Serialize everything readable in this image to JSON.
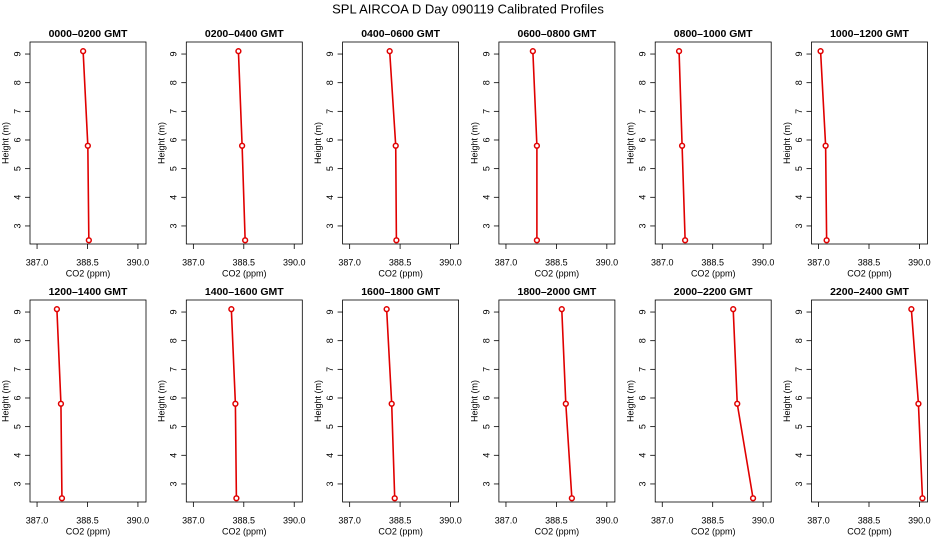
{
  "title": "SPL AIRCOA D  Day 090119  Calibrated Profiles",
  "chart_data": [
    {
      "type": "line",
      "title": "0000–0200 GMT",
      "x_label": "CO2 (ppm)",
      "y_label": "Height (m)",
      "color": "#e00000",
      "x": [
        388.37,
        388.51,
        388.54
      ],
      "values": [
        9.1,
        5.8,
        2.5
      ],
      "xlim": [
        386.79,
        390.24
      ],
      "ylim": [
        2.37,
        9.42
      ],
      "xticks": [
        {
          "value": 387,
          "label": "387.0"
        },
        {
          "value": 388.5,
          "label": "388.5"
        },
        {
          "value": 390,
          "label": "390.0"
        }
      ],
      "yticks": [
        3,
        4,
        5,
        6,
        7,
        8,
        9
      ]
    },
    {
      "type": "line",
      "title": "0200–0400 GMT",
      "x_label": "CO2 (ppm)",
      "y_label": "Height (m)",
      "color": "#e00000",
      "x": [
        388.34,
        388.45,
        388.54
      ],
      "values": [
        9.1,
        5.8,
        2.5
      ],
      "xlim": [
        386.79,
        390.24
      ],
      "ylim": [
        2.37,
        9.42
      ],
      "xticks": [
        {
          "value": 387,
          "label": "387.0"
        },
        {
          "value": 388.5,
          "label": "388.5"
        },
        {
          "value": 390,
          "label": "390.0"
        }
      ],
      "yticks": [
        3,
        4,
        5,
        6,
        7,
        8,
        9
      ]
    },
    {
      "type": "line",
      "title": "0400–0600 GMT",
      "x_label": "CO2 (ppm)",
      "y_label": "Height (m)",
      "color": "#e00000",
      "x": [
        388.19,
        388.37,
        388.39
      ],
      "values": [
        9.1,
        5.8,
        2.5
      ],
      "xlim": [
        386.79,
        390.24
      ],
      "ylim": [
        2.37,
        9.42
      ],
      "xticks": [
        {
          "value": 387,
          "label": "387.0"
        },
        {
          "value": 388.5,
          "label": "388.5"
        },
        {
          "value": 390,
          "label": "390.0"
        }
      ],
      "yticks": [
        3,
        4,
        5,
        6,
        7,
        8,
        9
      ]
    },
    {
      "type": "line",
      "title": "0600–0800 GMT",
      "x_label": "CO2 (ppm)",
      "y_label": "Height (m)",
      "color": "#e00000",
      "x": [
        387.8,
        387.92,
        387.92
      ],
      "values": [
        9.1,
        5.8,
        2.5
      ],
      "xlim": [
        386.79,
        390.24
      ],
      "ylim": [
        2.37,
        9.42
      ],
      "xticks": [
        {
          "value": 387,
          "label": "387.0"
        },
        {
          "value": 388.5,
          "label": "388.5"
        },
        {
          "value": 390,
          "label": "390.0"
        }
      ],
      "yticks": [
        3,
        4,
        5,
        6,
        7,
        8,
        9
      ]
    },
    {
      "type": "line",
      "title": "0800–1000 GMT",
      "x_label": "CO2 (ppm)",
      "y_label": "Height (m)",
      "color": "#e00000",
      "x": [
        387.5,
        387.59,
        387.68
      ],
      "values": [
        9.1,
        5.8,
        2.5
      ],
      "xlim": [
        386.79,
        390.24
      ],
      "ylim": [
        2.37,
        9.42
      ],
      "xticks": [
        {
          "value": 387,
          "label": "387.0"
        },
        {
          "value": 388.5,
          "label": "388.5"
        },
        {
          "value": 390,
          "label": "390.0"
        }
      ],
      "yticks": [
        3,
        4,
        5,
        6,
        7,
        8,
        9
      ]
    },
    {
      "type": "line",
      "title": "1000–1200 GMT",
      "x_label": "CO2 (ppm)",
      "y_label": "Height (m)",
      "color": "#e00000",
      "x": [
        387.06,
        387.21,
        387.24
      ],
      "values": [
        9.1,
        5.8,
        2.5
      ],
      "xlim": [
        386.79,
        390.24
      ],
      "ylim": [
        2.37,
        9.42
      ],
      "xticks": [
        {
          "value": 387,
          "label": "387.0"
        },
        {
          "value": 388.5,
          "label": "388.5"
        },
        {
          "value": 390,
          "label": "390.0"
        }
      ],
      "yticks": [
        3,
        4,
        5,
        6,
        7,
        8,
        9
      ]
    },
    {
      "type": "line",
      "title": "1200–1400 GMT",
      "x_label": "CO2 (ppm)",
      "y_label": "Height (m)",
      "color": "#e00000",
      "x": [
        387.59,
        387.71,
        387.74
      ],
      "values": [
        9.1,
        5.8,
        2.5
      ],
      "xlim": [
        386.79,
        390.24
      ],
      "ylim": [
        2.37,
        9.42
      ],
      "xticks": [
        {
          "value": 387,
          "label": "387.0"
        },
        {
          "value": 388.5,
          "label": "388.5"
        },
        {
          "value": 390,
          "label": "390.0"
        }
      ],
      "yticks": [
        3,
        4,
        5,
        6,
        7,
        8,
        9
      ]
    },
    {
      "type": "line",
      "title": "1400–1600 GMT",
      "x_label": "CO2 (ppm)",
      "y_label": "Height (m)",
      "color": "#e00000",
      "x": [
        388.13,
        388.25,
        388.28
      ],
      "values": [
        9.1,
        5.8,
        2.5
      ],
      "xlim": [
        386.79,
        390.24
      ],
      "ylim": [
        2.37,
        9.42
      ],
      "xticks": [
        {
          "value": 387,
          "label": "387.0"
        },
        {
          "value": 388.5,
          "label": "388.5"
        },
        {
          "value": 390,
          "label": "390.0"
        }
      ],
      "yticks": [
        3,
        4,
        5,
        6,
        7,
        8,
        9
      ]
    },
    {
      "type": "line",
      "title": "1600–1800 GMT",
      "x_label": "CO2 (ppm)",
      "y_label": "Height (m)",
      "color": "#e00000",
      "x": [
        388.1,
        388.25,
        388.34
      ],
      "values": [
        9.1,
        5.8,
        2.5
      ],
      "xlim": [
        386.79,
        390.24
      ],
      "ylim": [
        2.37,
        9.42
      ],
      "xticks": [
        {
          "value": 387,
          "label": "387.0"
        },
        {
          "value": 388.5,
          "label": "388.5"
        },
        {
          "value": 390,
          "label": "390.0"
        }
      ],
      "yticks": [
        3,
        4,
        5,
        6,
        7,
        8,
        9
      ]
    },
    {
      "type": "line",
      "title": "1800–2000 GMT",
      "x_label": "CO2 (ppm)",
      "y_label": "Height (m)",
      "color": "#e00000",
      "x": [
        388.66,
        388.78,
        388.96
      ],
      "values": [
        9.1,
        5.8,
        2.5
      ],
      "xlim": [
        386.79,
        390.24
      ],
      "ylim": [
        2.37,
        9.42
      ],
      "xticks": [
        {
          "value": 387,
          "label": "387.0"
        },
        {
          "value": 388.5,
          "label": "388.5"
        },
        {
          "value": 390,
          "label": "390.0"
        }
      ],
      "yticks": [
        3,
        4,
        5,
        6,
        7,
        8,
        9
      ]
    },
    {
      "type": "line",
      "title": "2000–2200 GMT",
      "x_label": "CO2 (ppm)",
      "y_label": "Height (m)",
      "color": "#e00000",
      "x": [
        389.11,
        389.23,
        389.7
      ],
      "values": [
        9.1,
        5.8,
        2.5
      ],
      "xlim": [
        386.79,
        390.24
      ],
      "ylim": [
        2.37,
        9.42
      ],
      "xticks": [
        {
          "value": 387,
          "label": "387.0"
        },
        {
          "value": 388.5,
          "label": "388.5"
        },
        {
          "value": 390,
          "label": "390.0"
        }
      ],
      "yticks": [
        3,
        4,
        5,
        6,
        7,
        8,
        9
      ]
    },
    {
      "type": "line",
      "title": "2200–2400 GMT",
      "x_label": "CO2 (ppm)",
      "y_label": "Height (m)",
      "color": "#e00000",
      "x": [
        389.76,
        389.97,
        390.09
      ],
      "values": [
        9.1,
        5.8,
        2.5
      ],
      "xlim": [
        386.79,
        390.24
      ],
      "ylim": [
        2.37,
        9.42
      ],
      "xticks": [
        {
          "value": 387,
          "label": "387.0"
        },
        {
          "value": 388.5,
          "label": "388.5"
        },
        {
          "value": 390,
          "label": "390.0"
        }
      ],
      "yticks": [
        3,
        4,
        5,
        6,
        7,
        8,
        9
      ]
    }
  ]
}
